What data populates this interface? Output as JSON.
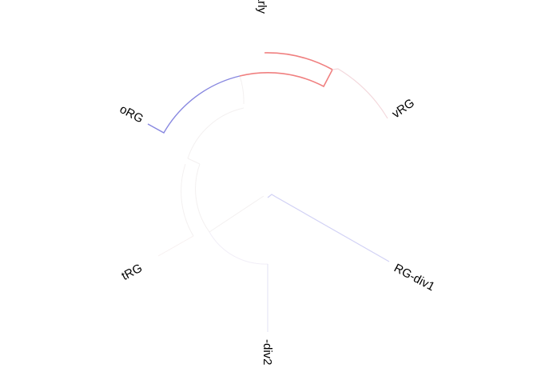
{
  "diagram": {
    "type": "circular-phylogenetic-tree",
    "tips": [
      {
        "id": "early",
        "label": "-early"
      },
      {
        "id": "vrg",
        "label": "vRG"
      },
      {
        "id": "org",
        "label": "oRG"
      },
      {
        "id": "trg",
        "label": "tRG"
      },
      {
        "id": "rgdiv1",
        "label": "RG-div1"
      },
      {
        "id": "div2",
        "label": "-div2"
      }
    ],
    "branch_colors": {
      "early": "#f08080",
      "vrg": "#f3d8dc",
      "org": "#8888e0",
      "rgdiv1": "#d2d2f5",
      "div2": "#e6e6f5",
      "trg": "#f7f0f0",
      "internal_faint": "#f0f0f0",
      "root": "#d8d8f0"
    }
  }
}
